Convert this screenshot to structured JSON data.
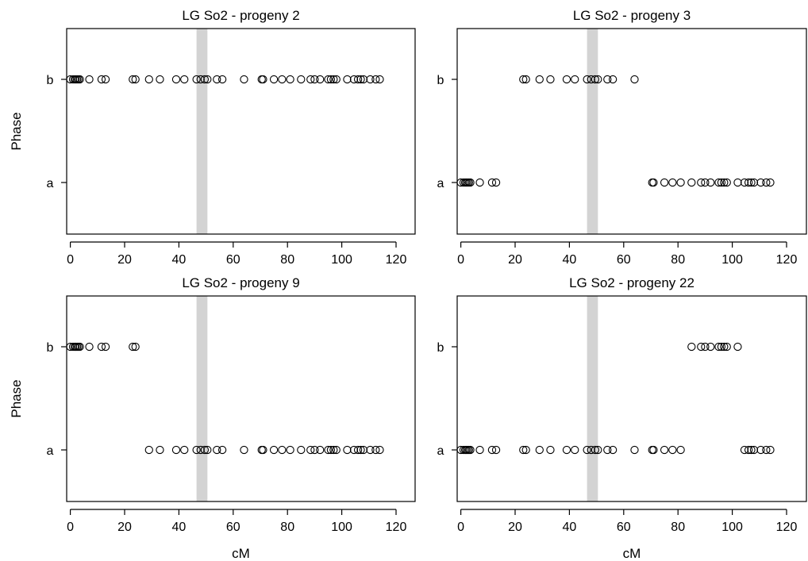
{
  "chart_data": [
    {
      "type": "scatter",
      "title": "LG So2 - progeny 2",
      "xlabel": "",
      "ylabel": "Phase",
      "xlim": [
        0,
        120
      ],
      "x_ticks": [
        "0",
        "20",
        "40",
        "60",
        "80",
        "100",
        "120"
      ],
      "categories": [
        "a",
        "b"
      ],
      "highlight_band": {
        "x_from": 46.5,
        "x_to": 50.5,
        "color": "#d3d3d3"
      },
      "points": {
        "a": [],
        "b": [
          0,
          1,
          1.6,
          2,
          2.5,
          3,
          3.5,
          7,
          11.5,
          13,
          23,
          24,
          29,
          33,
          39,
          42,
          46.5,
          48,
          49.5,
          50.5,
          54,
          56,
          64,
          70.5,
          71,
          75,
          78,
          81,
          85,
          88.5,
          90,
          92,
          95,
          96,
          97,
          98,
          102,
          104.5,
          106,
          107,
          108,
          110.5,
          112.5,
          114
        ]
      }
    },
    {
      "type": "scatter",
      "title": "LG So2 - progeny 3",
      "xlabel": "",
      "ylabel": "",
      "xlim": [
        0,
        120
      ],
      "x_ticks": [
        "0",
        "20",
        "40",
        "60",
        "80",
        "100",
        "120"
      ],
      "categories": [
        "a",
        "b"
      ],
      "highlight_band": {
        "x_from": 46.5,
        "x_to": 50.5,
        "color": "#d3d3d3"
      },
      "points": {
        "a": [
          0,
          1,
          1.6,
          2,
          2.5,
          3,
          3.5,
          7,
          11.5,
          13,
          70.5,
          71,
          75,
          78,
          81,
          85,
          88.5,
          90,
          92,
          95,
          96,
          97,
          98,
          102,
          104.5,
          106,
          107,
          108,
          110.5,
          112.5,
          114
        ],
        "b": [
          23,
          24,
          29,
          33,
          39,
          42,
          46.5,
          48,
          49.5,
          50.5,
          54,
          56,
          64
        ]
      }
    },
    {
      "type": "scatter",
      "title": "LG So2 - progeny 9",
      "xlabel": "cM",
      "ylabel": "Phase",
      "xlim": [
        0,
        120
      ],
      "x_ticks": [
        "0",
        "20",
        "40",
        "60",
        "80",
        "100",
        "120"
      ],
      "categories": [
        "a",
        "b"
      ],
      "highlight_band": {
        "x_from": 46.5,
        "x_to": 50.5,
        "color": "#d3d3d3"
      },
      "points": {
        "a": [
          29,
          33,
          39,
          42,
          46.5,
          48,
          49.5,
          50.5,
          54,
          56,
          64,
          70.5,
          71,
          75,
          78,
          81,
          85,
          88.5,
          90,
          92,
          95,
          96,
          97,
          98,
          102,
          104.5,
          106,
          107,
          108,
          110.5,
          112.5,
          114
        ],
        "b": [
          0,
          1,
          1.6,
          2,
          2.5,
          3,
          3.5,
          7,
          11.5,
          13,
          23,
          24
        ]
      }
    },
    {
      "type": "scatter",
      "title": "LG So2 - progeny 22",
      "xlabel": "cM",
      "ylabel": "",
      "xlim": [
        0,
        120
      ],
      "x_ticks": [
        "0",
        "20",
        "40",
        "60",
        "80",
        "100",
        "120"
      ],
      "categories": [
        "a",
        "b"
      ],
      "highlight_band": {
        "x_from": 46.5,
        "x_to": 50.5,
        "color": "#d3d3d3"
      },
      "points": {
        "a": [
          0,
          1,
          1.6,
          2,
          2.5,
          3,
          3.5,
          7,
          11.5,
          13,
          23,
          24,
          29,
          33,
          39,
          42,
          46.5,
          48,
          49.5,
          50.5,
          54,
          56,
          64,
          70.5,
          71,
          75,
          78,
          81,
          104.5,
          106,
          107,
          108,
          110.5,
          112.5,
          114
        ],
        "b": [
          85,
          88.5,
          90,
          92,
          95,
          96,
          97,
          98,
          102
        ]
      }
    }
  ]
}
